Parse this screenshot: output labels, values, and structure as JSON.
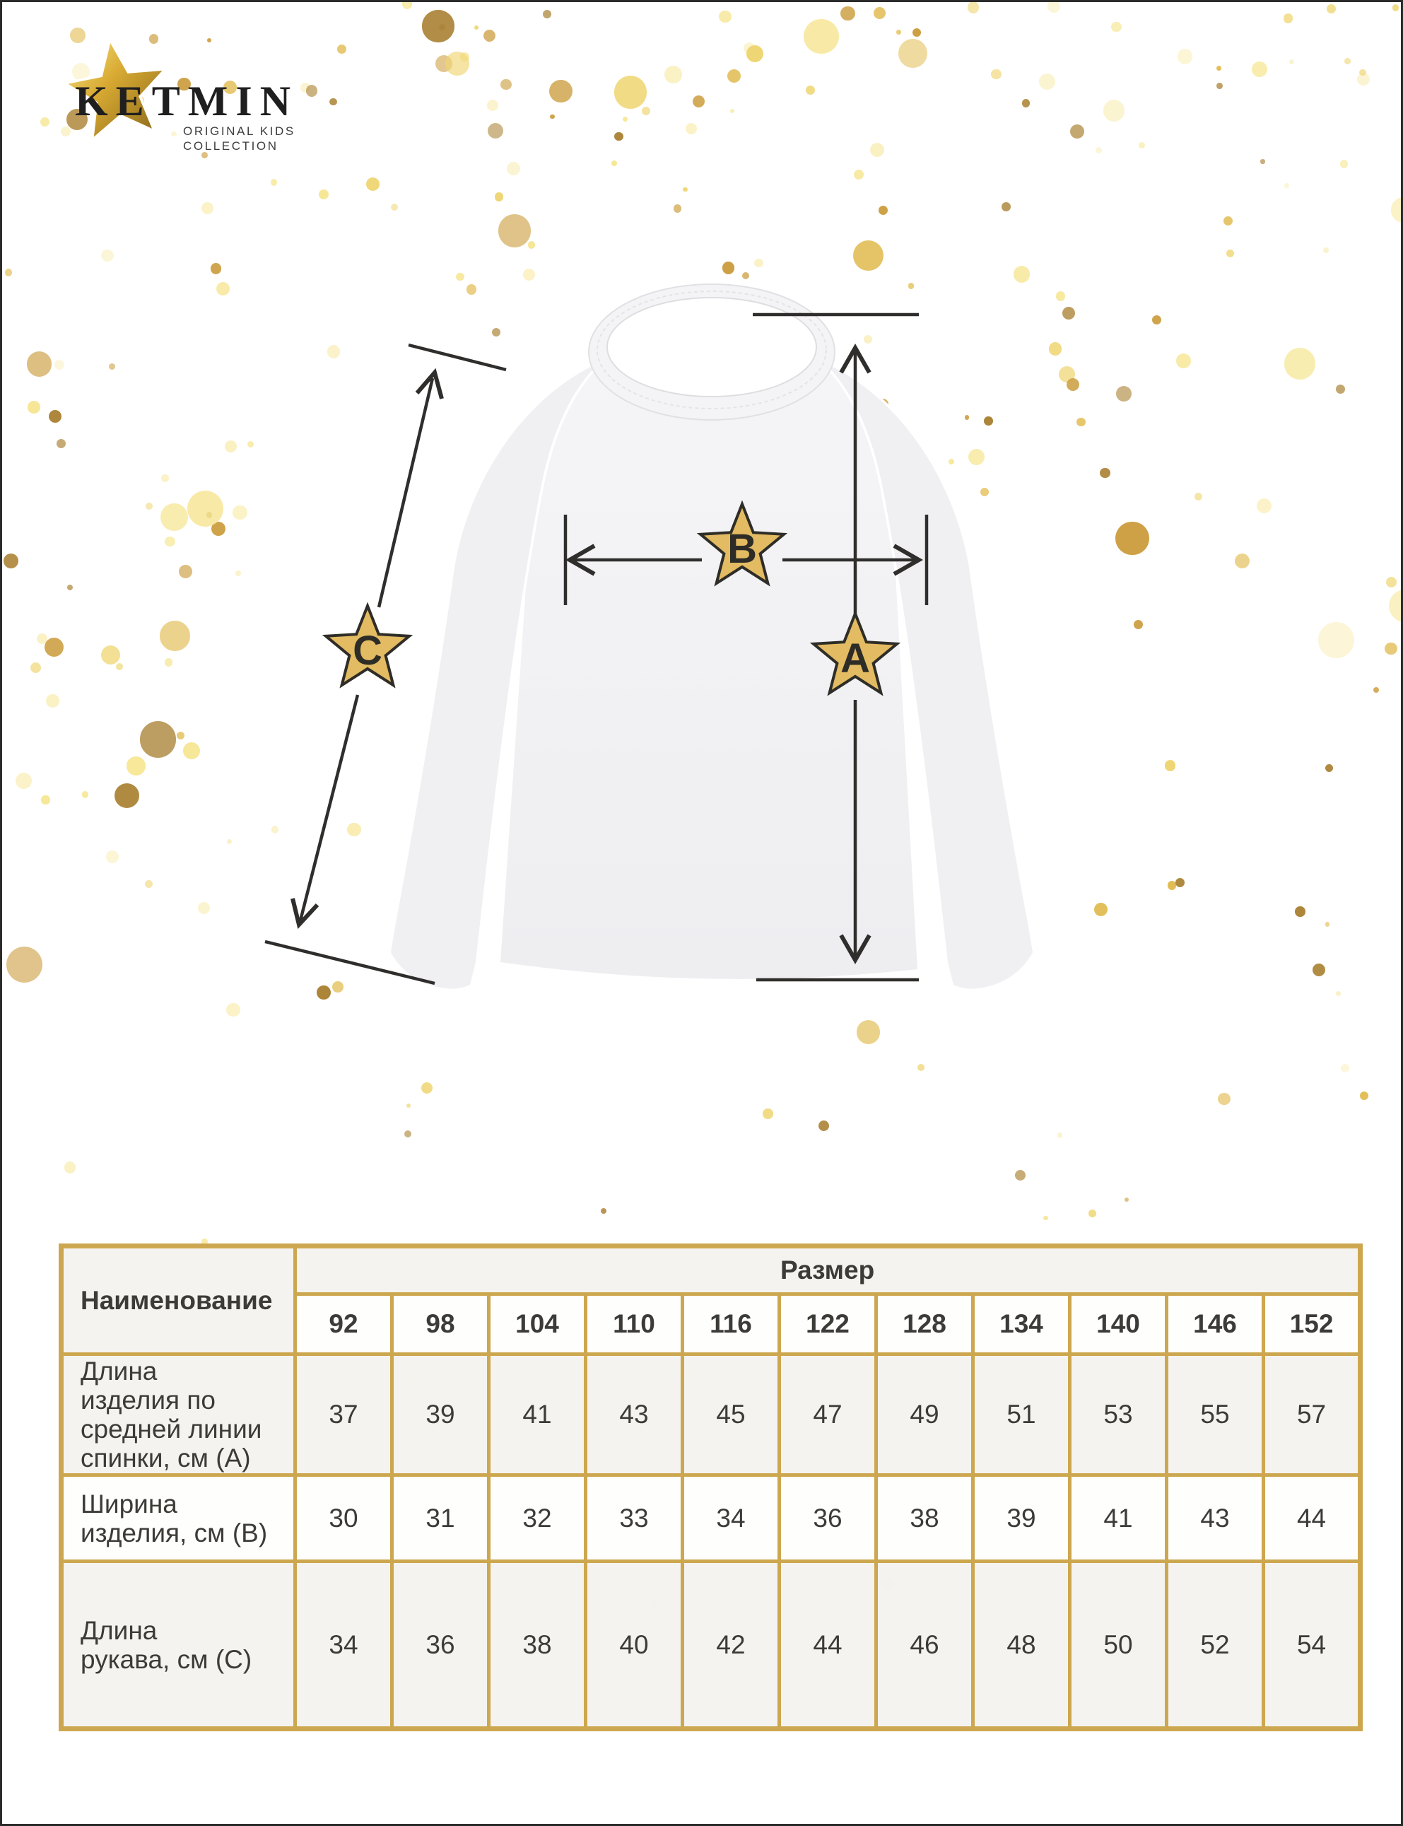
{
  "brand": {
    "name": "KETMIN",
    "subtitle_line1": "ORIGINAL KIDS",
    "subtitle_line2": "COLLECTION"
  },
  "diagram": {
    "marker_a": "A",
    "marker_b": "B",
    "marker_c": "C",
    "star_fill": "#e3bb62",
    "star_outline": "#2f2d27",
    "line_color": "#2f2e2c"
  },
  "table": {
    "border_color": "#cda74f",
    "name_header": "Наименование",
    "size_header": "Размер",
    "sizes": [
      "92",
      "98",
      "104",
      "110",
      "116",
      "122",
      "128",
      "134",
      "140",
      "146",
      "152"
    ],
    "rows": [
      {
        "label": "Длина\nизделия по\nсредней линии\nспинки, см (А)",
        "values": [
          "37",
          "39",
          "41",
          "43",
          "45",
          "47",
          "49",
          "51",
          "53",
          "55",
          "57"
        ]
      },
      {
        "label": "Ширина\nизделия, см (В)",
        "values": [
          "30",
          "31",
          "32",
          "33",
          "34",
          "36",
          "38",
          "39",
          "41",
          "43",
          "44"
        ]
      },
      {
        "label": "Длина\nрукава, см (С)",
        "values": [
          "34",
          "36",
          "38",
          "40",
          "42",
          "44",
          "46",
          "48",
          "50",
          "52",
          "54"
        ]
      }
    ]
  },
  "confetti_palette": [
    "#faf0c0",
    "#f6e693",
    "#efd673",
    "#e2bd55",
    "#cda044",
    "#ab8336"
  ]
}
